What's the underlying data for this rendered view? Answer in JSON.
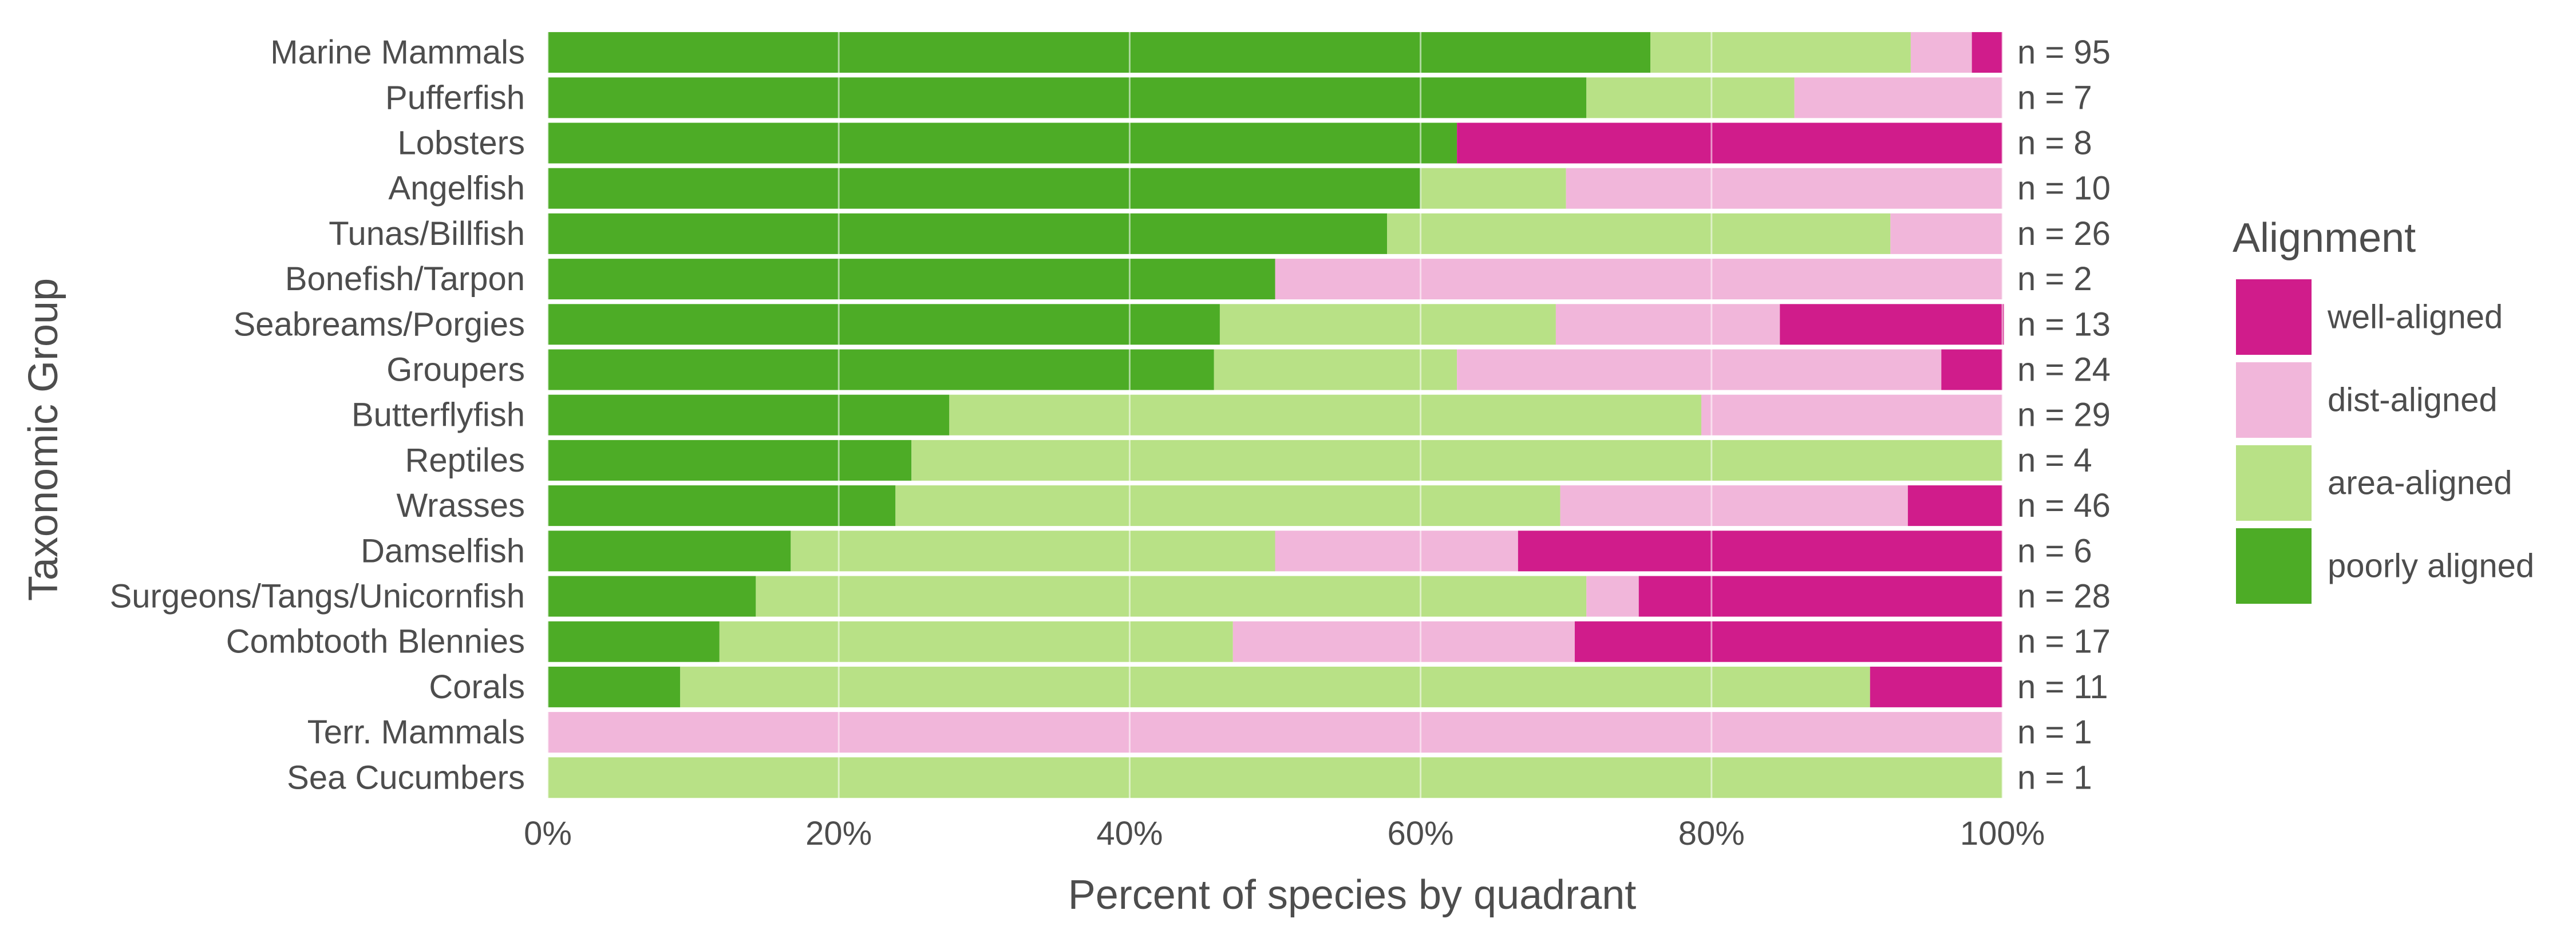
{
  "chart_data": {
    "type": "bar",
    "orientation": "horizontal",
    "stacked": true,
    "xlabel": "Percent of species by quadrant",
    "ylabel": "Taxonomic Group",
    "xlim": [
      0,
      100
    ],
    "x_ticks": [
      "0%",
      "20%",
      "40%",
      "60%",
      "80%",
      "100%"
    ],
    "grid": true,
    "legend": {
      "title": "Alignment",
      "position": "right"
    },
    "categories": [
      "Marine Mammals",
      "Pufferfish",
      "Lobsters",
      "Angelfish",
      "Tunas/Billfish",
      "Bonefish/Tarpon",
      "Seabreams/Porgies",
      "Groupers",
      "Butterflyfish",
      "Reptiles",
      "Wrasses",
      "Damselfish",
      "Surgeons/Tangs/Unicornfish",
      "Combtooth Blennies",
      "Corals",
      "Terr. Mammals",
      "Sea Cucumbers"
    ],
    "counts": [
      "n = 95",
      "n = 7",
      "n = 8",
      "n = 10",
      "n = 26",
      "n = 2",
      "n = 13",
      "n = 24",
      "n = 29",
      "n = 4",
      "n = 46",
      "n = 6",
      "n = 28",
      "n = 17",
      "n = 11",
      "n = 1",
      "n = 1"
    ],
    "series": [
      {
        "name": "poorly aligned",
        "color": "#4dac26",
        "values": [
          75.8,
          71.4,
          62.5,
          60.0,
          57.7,
          50.0,
          46.2,
          45.8,
          27.6,
          25.0,
          23.9,
          16.7,
          14.3,
          11.8,
          9.1,
          0,
          0
        ]
      },
      {
        "name": "area-aligned",
        "color": "#b8e186",
        "values": [
          17.9,
          14.3,
          0,
          10.0,
          34.6,
          0,
          23.1,
          16.7,
          51.7,
          75.0,
          45.7,
          33.3,
          57.1,
          35.3,
          81.8,
          0,
          100.0
        ]
      },
      {
        "name": "dist-aligned",
        "color": "#f1b6da",
        "values": [
          4.2,
          14.3,
          0,
          30.0,
          7.7,
          50.0,
          15.4,
          33.3,
          20.7,
          0,
          23.9,
          16.7,
          3.6,
          23.5,
          0,
          100.0,
          0
        ]
      },
      {
        "name": "well-aligned",
        "color": "#d01c8b",
        "values": [
          2.1,
          0,
          37.5,
          0,
          0,
          0,
          15.4,
          4.2,
          0,
          0,
          6.5,
          33.3,
          25.0,
          29.4,
          9.1,
          0,
          0
        ]
      }
    ],
    "legend_order": [
      "well-aligned",
      "dist-aligned",
      "area-aligned",
      "poorly aligned"
    ]
  }
}
